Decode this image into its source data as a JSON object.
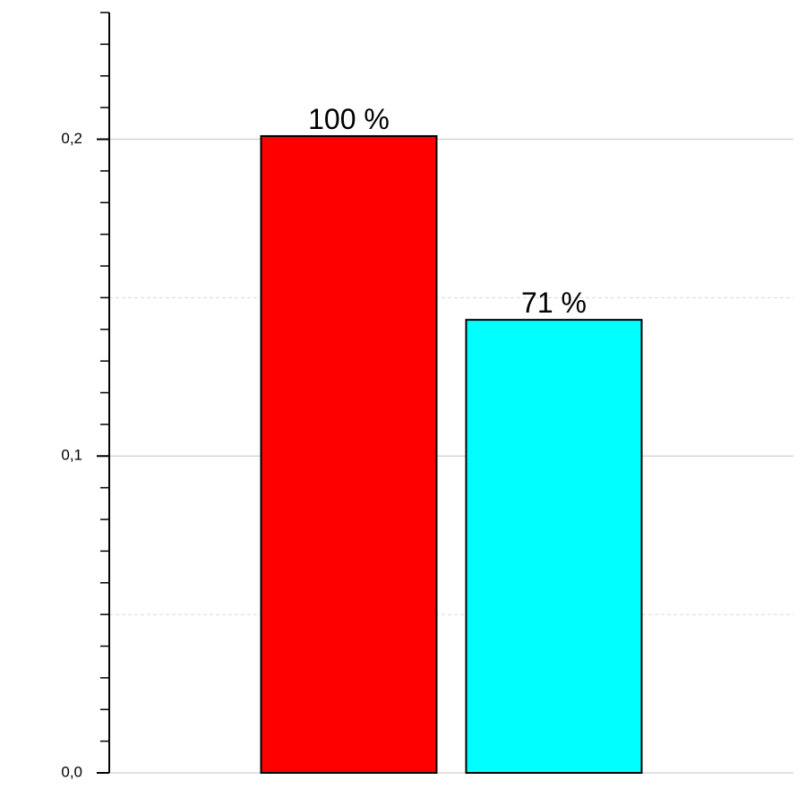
{
  "chart_data": {
    "type": "bar",
    "categories": [
      null,
      null
    ],
    "values": [
      0.201,
      0.143
    ],
    "value_labels": [
      "100 %",
      "71 %"
    ],
    "colors": [
      "#ff0000",
      "#00ffff"
    ],
    "ylim": [
      0,
      0.24
    ],
    "yticks": [
      {
        "value": 0,
        "label": "0,0"
      },
      {
        "value": 0.1,
        "label": "0,1"
      },
      {
        "value": 0.2,
        "label": "0,2"
      }
    ],
    "minor_yticks": [
      0.01,
      0.02,
      0.03,
      0.04,
      0.05,
      0.06,
      0.07,
      0.08,
      0.09,
      0.11,
      0.12,
      0.13,
      0.14,
      0.15,
      0.16,
      0.17,
      0.18,
      0.19,
      0.21,
      0.22,
      0.23,
      0.24
    ],
    "dashed_grid": [
      0.05,
      0.15
    ],
    "grid": true
  }
}
